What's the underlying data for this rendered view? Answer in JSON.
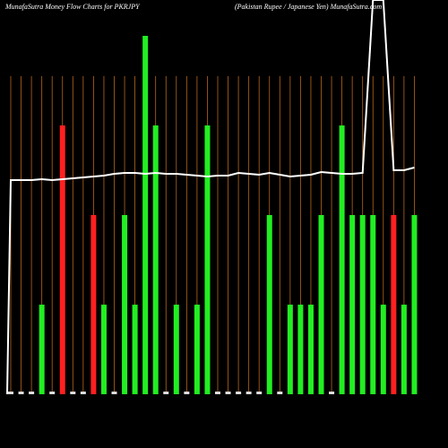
{
  "chart_data": {
    "type": "bar",
    "title": "MunafaSutra  Money Flow  Charts for PKRJPY",
    "subtitle": "(Pakistan  Rupee   / Japanese   Yen) MunafaSutra.com",
    "categories": [
      null,
      null,
      null,
      null,
      null,
      null,
      null,
      null,
      null,
      null,
      null,
      null,
      null,
      null,
      null,
      null,
      null,
      null,
      null,
      null,
      null,
      null,
      null,
      null,
      null,
      null,
      null,
      null,
      null,
      null,
      null,
      null,
      null,
      null,
      null,
      null,
      null,
      null,
      null,
      null
    ],
    "values": [
      0.03,
      0.03,
      0.03,
      1,
      0.03,
      3,
      0.03,
      0.03,
      2,
      1,
      0.03,
      2,
      1,
      4,
      3,
      0.03,
      1,
      0.03,
      1,
      3,
      0.03,
      0.03,
      0.03,
      0.03,
      0.03,
      2,
      0.03,
      1,
      1,
      1,
      2,
      0.03,
      3,
      2,
      2,
      2,
      1,
      2,
      1,
      2
    ],
    "colors": [
      "#ddd",
      "#ddd",
      "#ddd",
      "#22ee22",
      "#ddd",
      "#ff2020",
      "#ddd",
      "#ddd",
      "#ff2020",
      "#22ee22",
      "#ddd",
      "#22ee22",
      "#22ee22",
      "#22ee22",
      "#22ee22",
      "#ddd",
      "#22ee22",
      "#ddd",
      "#22ee22",
      "#22ee22",
      "#ddd",
      "#ddd",
      "#ddd",
      "#ddd",
      "#ddd",
      "#22ee22",
      "#ddd",
      "#22ee22",
      "#22ee22",
      "#22ee22",
      "#22ee22",
      "#ddd",
      "#22ee22",
      "#22ee22",
      "#22ee22",
      "#22ee22",
      "#22ee22",
      "#ff2020",
      "#22ee22",
      "#22ee22"
    ],
    "ylim": [
      0,
      4
    ],
    "line": {
      "color": "#ffffff",
      "axis": "y2",
      "values": [
        239,
        239,
        239,
        240,
        239,
        240,
        241,
        242,
        243,
        244,
        246,
        247,
        247,
        246,
        247,
        246,
        246,
        245,
        244,
        243,
        244,
        244,
        247,
        246,
        245,
        247,
        245,
        243,
        244,
        245,
        248,
        247,
        246,
        246,
        247,
        440,
        440,
        250,
        250,
        253
      ]
    },
    "y2lim": [
      0,
      440
    ],
    "grid_color": "#b8661a"
  }
}
